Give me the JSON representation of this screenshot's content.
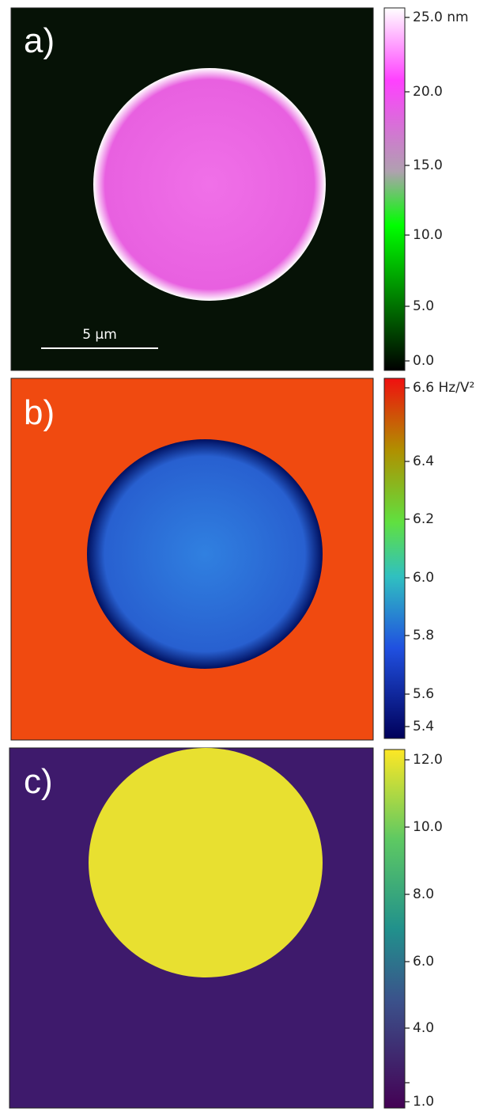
{
  "panels": [
    {
      "label": "a)",
      "scale_bar": "5 µm",
      "colorbar_ticks": [
        "25.0 nm",
        "20.0",
        "15.0",
        "10.0",
        "5.0",
        "0.0"
      ]
    },
    {
      "label": "b)",
      "colorbar_ticks": [
        "6.6 Hz/V²",
        "6.4",
        "6.2",
        "6.0",
        "5.8",
        "5.6",
        "5.4"
      ]
    },
    {
      "label": "c)",
      "colorbar_ticks": [
        "12.0",
        "10.0",
        "8.0",
        "6.0",
        "4.0",
        "1.0"
      ]
    }
  ]
}
